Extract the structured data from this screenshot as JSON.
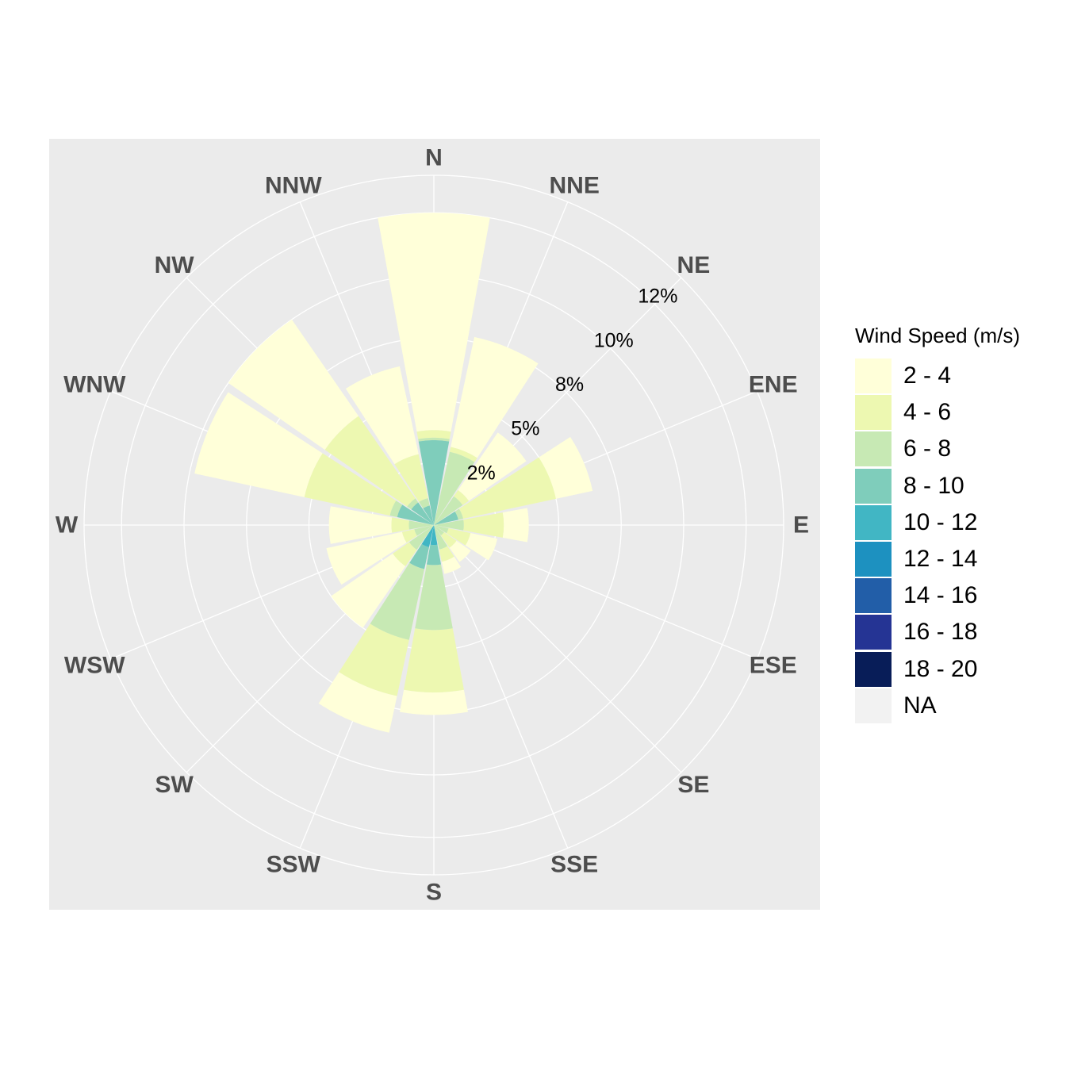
{
  "chart_data": {
    "type": "windrose",
    "directions": [
      "N",
      "NNE",
      "NE",
      "ENE",
      "E",
      "ESE",
      "SE",
      "SSE",
      "S",
      "SSW",
      "SW",
      "WSW",
      "W",
      "WNW",
      "NW",
      "NNW"
    ],
    "ring_labels": [
      "2%",
      "5%",
      "8%",
      "10%",
      "12%"
    ],
    "ring_values": [
      2.5,
      5,
      7.5,
      10,
      12.5
    ],
    "r_max": 14,
    "legend": {
      "title": "Wind Speed (m/s)",
      "position": "right",
      "bins": [
        {
          "label": "2 - 4",
          "color": "#ffffd9"
        },
        {
          "label": "4 - 6",
          "color": "#edf8b1"
        },
        {
          "label": "6 - 8",
          "color": "#c7e9b4"
        },
        {
          "label": "8 - 10",
          "color": "#7fcdbb"
        },
        {
          "label": "10 - 12",
          "color": "#41b6c4"
        },
        {
          "label": "12 - 14",
          "color": "#1d91c0"
        },
        {
          "label": "14 - 16",
          "color": "#225ea8"
        },
        {
          "label": "16 - 18",
          "color": "#253494"
        },
        {
          "label": "18 - 20",
          "color": "#081d58"
        },
        {
          "label": "NA",
          "color": "#f2f2f2"
        }
      ]
    },
    "series": [
      {
        "direction": "N",
        "cumulative": [
          12.5,
          3.8,
          3.5,
          3.4
        ]
      },
      {
        "direction": "NNE",
        "cumulative": [
          7.7,
          3.2,
          3.0
        ]
      },
      {
        "direction": "NE",
        "cumulative": [
          4.5,
          1.7,
          1.4
        ]
      },
      {
        "direction": "ENE",
        "cumulative": [
          6.5,
          5.0,
          1.2,
          1.0
        ]
      },
      {
        "direction": "E",
        "cumulative": [
          3.8,
          2.8,
          1.2
        ]
      },
      {
        "direction": "ESE",
        "cumulative": [
          2.6,
          1.5,
          0.6
        ]
      },
      {
        "direction": "SE",
        "cumulative": [
          1.8,
          1.1,
          0.5
        ]
      },
      {
        "direction": "SSE",
        "cumulative": [
          2.0,
          1.5,
          1.0
        ]
      },
      {
        "direction": "S",
        "cumulative": [
          7.6,
          6.7,
          4.2,
          1.6,
          0.8
        ]
      },
      {
        "direction": "SSW",
        "cumulative": [
          8.5,
          7.0,
          4.7,
          1.8,
          0.9
        ]
      },
      {
        "direction": "SW",
        "cumulative": [
          5.0,
          2.0,
          1.2
        ]
      },
      {
        "direction": "WSW",
        "cumulative": [
          4.4,
          1.3,
          0.8
        ]
      },
      {
        "direction": "W",
        "cumulative": [
          4.2,
          1.7,
          1.0
        ]
      },
      {
        "direction": "WNW",
        "cumulative": [
          9.8,
          5.3,
          1.8,
          1.5
        ]
      },
      {
        "direction": "NW",
        "cumulative": [
          10.0,
          5.3,
          1.3,
          1.1
        ]
      },
      {
        "direction": "NNW",
        "cumulative": [
          6.5,
          2.9,
          1.1,
          0.8
        ]
      }
    ]
  }
}
